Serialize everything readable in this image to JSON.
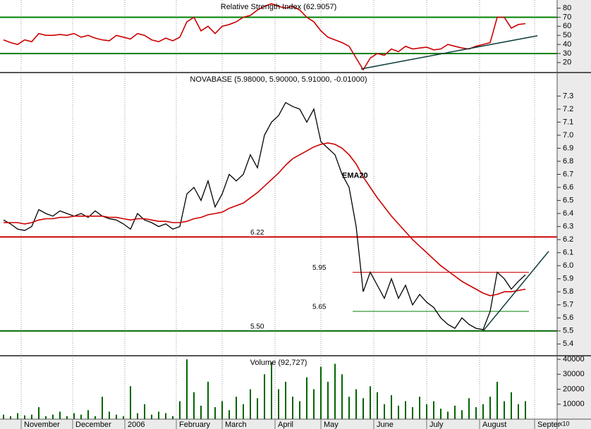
{
  "chart_data": [
    {
      "type": "line",
      "title": "Relative Strength Index (62.9057)",
      "x": [
        0,
        1,
        2,
        3,
        4,
        5,
        6,
        7,
        8,
        9,
        10,
        11,
        12,
        13,
        14,
        15,
        16,
        17,
        18,
        19,
        20,
        21,
        22,
        23,
        24,
        25,
        26,
        27,
        28,
        29,
        30,
        31,
        32,
        33,
        34,
        35,
        36,
        37,
        38,
        39,
        40,
        41,
        42,
        43,
        44,
        45,
        46,
        47,
        48,
        49,
        50,
        51,
        52,
        53,
        54,
        55,
        56,
        57,
        58,
        59,
        60,
        61,
        62,
        63,
        64,
        65,
        66,
        67,
        68,
        69,
        70,
        71,
        72,
        73,
        74
      ],
      "series": [
        {
          "color": "#cc0000",
          "values": [
            45,
            42,
            40,
            45,
            43,
            52,
            50,
            50,
            51,
            50,
            52,
            48,
            50,
            47,
            45,
            44,
            50,
            48,
            46,
            52,
            50,
            45,
            43,
            47,
            44,
            48,
            65,
            70,
            55,
            60,
            52,
            60,
            62,
            65,
            70,
            72,
            78,
            82,
            85,
            82,
            80,
            82,
            78,
            70,
            65,
            55,
            48,
            45,
            42,
            38,
            25,
            12,
            25,
            30,
            28,
            35,
            32,
            38,
            35,
            36,
            37,
            34,
            35,
            40,
            38,
            36,
            35,
            38,
            40,
            42,
            70,
            70,
            58,
            62,
            63
          ]
        }
      ],
      "ylim": [
        9,
        89
      ],
      "yticks": [
        20,
        30,
        40,
        50,
        60,
        70,
        80
      ],
      "hlines": [
        {
          "value": 70,
          "color": "#008000"
        },
        {
          "value": 30,
          "color": "#008000"
        }
      ],
      "trendlines": [
        {
          "x": [
            50.7,
            75.7
          ],
          "y": [
            13,
            49.6
          ],
          "color": "#0a3a3a"
        }
      ]
    },
    {
      "type": "line",
      "title": "NOVABASE (5.98000, 5.90000, 5.91000, -0.01000)",
      "x": [
        0,
        1,
        2,
        3,
        4,
        5,
        6,
        7,
        8,
        9,
        10,
        11,
        12,
        13,
        14,
        15,
        16,
        17,
        18,
        19,
        20,
        21,
        22,
        23,
        24,
        25,
        26,
        27,
        28,
        29,
        30,
        31,
        32,
        33,
        34,
        35,
        36,
        37,
        38,
        39,
        40,
        41,
        42,
        43,
        44,
        45,
        46,
        47,
        48,
        49,
        50,
        51,
        52,
        53,
        54,
        55,
        56,
        57,
        58,
        59,
        60,
        61,
        62,
        63,
        64,
        65,
        66,
        67,
        68,
        69,
        70,
        71,
        72,
        73,
        74
      ],
      "series": [
        {
          "color": "#000000",
          "values": [
            6.35,
            6.32,
            6.28,
            6.27,
            6.3,
            6.43,
            6.4,
            6.38,
            6.42,
            6.4,
            6.38,
            6.4,
            6.37,
            6.42,
            6.38,
            6.36,
            6.35,
            6.32,
            6.28,
            6.4,
            6.35,
            6.33,
            6.3,
            6.32,
            6.28,
            6.3,
            6.55,
            6.6,
            6.5,
            6.65,
            6.45,
            6.55,
            6.7,
            6.65,
            6.7,
            6.85,
            6.75,
            7.0,
            7.1,
            7.15,
            7.25,
            7.22,
            7.2,
            7.1,
            7.2,
            6.95,
            6.9,
            6.85,
            6.7,
            6.6,
            6.3,
            5.8,
            5.95,
            5.85,
            5.75,
            5.9,
            5.75,
            5.85,
            5.7,
            5.78,
            5.72,
            5.68,
            5.6,
            5.55,
            5.52,
            5.6,
            5.55,
            5.52,
            5.51,
            5.65,
            5.95,
            5.9,
            5.82,
            5.88,
            5.93
          ]
        },
        {
          "color": "#cc0000",
          "values": [
            6.33,
            6.33,
            6.33,
            6.32,
            6.33,
            6.35,
            6.36,
            6.36,
            6.37,
            6.37,
            6.38,
            6.38,
            6.38,
            6.38,
            6.38,
            6.37,
            6.37,
            6.36,
            6.35,
            6.36,
            6.36,
            6.35,
            6.34,
            6.34,
            6.33,
            6.33,
            6.34,
            6.36,
            6.37,
            6.39,
            6.4,
            6.41,
            6.44,
            6.46,
            6.48,
            6.52,
            6.56,
            6.61,
            6.66,
            6.71,
            6.77,
            6.82,
            6.85,
            6.88,
            6.91,
            6.93,
            6.94,
            6.93,
            6.9,
            6.85,
            6.78,
            6.68,
            6.6,
            6.52,
            6.45,
            6.38,
            6.32,
            6.26,
            6.2,
            6.15,
            6.1,
            6.05,
            6.0,
            5.96,
            5.92,
            5.88,
            5.85,
            5.82,
            5.79,
            5.77,
            5.78,
            5.8,
            5.8,
            5.81,
            5.82
          ]
        }
      ],
      "annotation": "EMA20",
      "ylim": [
        5.31,
        7.48
      ],
      "yticks": [
        5.4,
        5.5,
        5.6,
        5.7,
        5.8,
        5.9,
        {
          "value": 6,
          "label": "6.0"
        },
        6.1,
        6.2,
        6.3,
        6.4,
        6.5,
        6.6,
        6.7,
        6.8,
        6.9,
        {
          "value": 7,
          "label": "7.0"
        },
        7.1,
        7.2,
        7.3
      ],
      "hlines": [
        {
          "value": 6.22,
          "label": "6.22",
          "color": "#cc0000"
        },
        {
          "value": 5.95,
          "label": "5.95",
          "color": "#cc0000",
          "x": [
            49.5,
            74.5
          ]
        },
        {
          "value": 5.65,
          "label": "5.65",
          "color": "#008000",
          "x": [
            49.5,
            74.5
          ]
        },
        {
          "value": 5.5,
          "label": "5.50",
          "color": "#006600"
        }
      ],
      "trendlines": [
        {
          "x": [
            68,
            77.3
          ],
          "y": [
            5.5,
            6.11
          ],
          "color": "#0a3a3a"
        }
      ]
    },
    {
      "type": "bar",
      "title": "Volume (92,727)",
      "color": "#006600",
      "x": [
        0,
        1,
        2,
        3,
        4,
        5,
        6,
        7,
        8,
        9,
        10,
        11,
        12,
        13,
        14,
        15,
        16,
        17,
        18,
        19,
        20,
        21,
        22,
        23,
        24,
        25,
        26,
        27,
        28,
        29,
        30,
        31,
        32,
        33,
        34,
        35,
        36,
        37,
        38,
        39,
        40,
        41,
        42,
        43,
        44,
        45,
        46,
        47,
        48,
        49,
        50,
        51,
        52,
        53,
        54,
        55,
        56,
        57,
        58,
        59,
        60,
        61,
        62,
        63,
        64,
        65,
        66,
        67,
        68,
        69,
        70,
        71,
        72,
        73,
        74
      ],
      "values": [
        3000,
        2000,
        4000,
        2500,
        3000,
        8000,
        2000,
        3000,
        5000,
        2000,
        4000,
        3000,
        6000,
        2000,
        15000,
        5000,
        3000,
        2000,
        22000,
        4000,
        10000,
        3000,
        5000,
        4000,
        2000,
        12000,
        40000,
        18000,
        9000,
        25000,
        8000,
        12000,
        6000,
        15000,
        10000,
        20000,
        14000,
        30000,
        38000,
        20000,
        25000,
        15000,
        12000,
        28000,
        20000,
        35000,
        25000,
        37000,
        30000,
        15000,
        20000,
        14000,
        22000,
        18000,
        10000,
        16000,
        9000,
        12000,
        8000,
        15000,
        10000,
        12000,
        7000,
        5000,
        9000,
        6000,
        14000,
        8000,
        10000,
        15000,
        25000,
        12000,
        18000,
        10000,
        12000
      ],
      "ylim": [
        0,
        42400
      ],
      "yticks": [
        10000,
        20000,
        30000,
        40000
      ],
      "ylabel": "x10",
      "xlim": [
        -0.5,
        78.5
      ],
      "grid": true,
      "xticks": [
        {
          "value": 2.5,
          "label": "November"
        },
        {
          "value": 9.8,
          "label": "December"
        },
        {
          "value": 17.2,
          "label": "2006"
        },
        {
          "value": 24.5,
          "label": "February"
        },
        {
          "value": 31,
          "label": "March"
        },
        {
          "value": 38.5,
          "label": "April"
        },
        {
          "value": 45,
          "label": "May"
        },
        {
          "value": 52.5,
          "label": "June"
        },
        {
          "value": 60,
          "label": "July"
        },
        {
          "value": 67.5,
          "label": "August"
        },
        {
          "value": 75.3,
          "label": "Septer"
        }
      ]
    }
  ]
}
